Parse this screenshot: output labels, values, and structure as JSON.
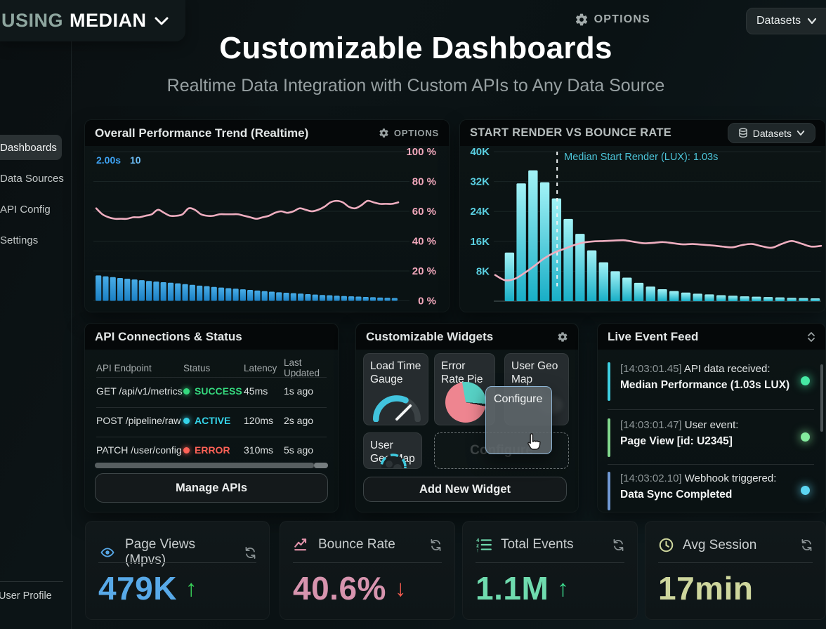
{
  "topbar": {
    "brand_using": "USING",
    "brand_median": "MEDIAN",
    "options_label": "OPTIONS",
    "datasets_label": "Datasets"
  },
  "sidebar": {
    "items": [
      {
        "label": "Dashboards"
      },
      {
        "label": "Data Sources"
      },
      {
        "label": "API Config"
      },
      {
        "label": "Settings"
      }
    ],
    "footer_label": "User Profile"
  },
  "header": {
    "title": "Customizable Dashboards",
    "subtitle": "Realtime Data Integration with Custom APIs to Any Data Source"
  },
  "perf_panel": {
    "title": "Overall Performance Trend (Realtime)",
    "options_label": "OPTIONS"
  },
  "render_panel": {
    "title": "START RENDER VS BOUNCE RATE",
    "datasets_label": "Datasets"
  },
  "api_panel": {
    "title": "API Connections & Status",
    "columns": [
      "API Endpoint",
      "Status",
      "Latency",
      "Last Updated"
    ],
    "rows": [
      {
        "endpoint": "GET /api/v1/metrics",
        "status": "SUCCESS",
        "status_color": "#35d97e",
        "latency": "45ms",
        "updated": "1s ago"
      },
      {
        "endpoint": "POST /pipeline/raw",
        "status": "ACTIVE",
        "status_color": "#35d3e8",
        "latency": "120ms",
        "updated": "2s ago"
      },
      {
        "endpoint": "PATCH /user/config",
        "status": "ERROR",
        "status_color": "#ff6257",
        "latency": "310ms",
        "updated": "5s ago"
      }
    ],
    "button_label": "Manage APIs"
  },
  "widgets_panel": {
    "title": "Customizable Widgets",
    "widget1": "Load Time Gauge",
    "widget2": "Error Rate Pie",
    "widget3": "User Geo Map",
    "widget4": "User Geo Map",
    "drag_label": "Configure",
    "dropzone_label": "Configure",
    "button_label": "Add New Widget"
  },
  "feed_panel": {
    "title": "Live Event Feed",
    "events": [
      {
        "timestamp": "[14:03:01.45]",
        "event": "API data received:",
        "detail": "Median Performance (1.03s LUX)",
        "bar_color": "#3ecfe2",
        "dot_color": "#46e9a4"
      },
      {
        "timestamp": "[14:03:01.47]",
        "event": "User event:",
        "detail": "Page View [id: U2345]",
        "bar_color": "#82d98e",
        "dot_color": "#83ea9d"
      },
      {
        "timestamp": "[14:03:02.10]",
        "event": "Webhook triggered:",
        "detail": "Data Sync Completed",
        "bar_color": "#7099d4",
        "dot_color": "#5cd5f2"
      }
    ]
  },
  "kpis": [
    {
      "icon": "eye-icon",
      "label": "Page Views (Mpvs)",
      "value": "479K",
      "trend": "↑",
      "value_color": "#58a9e8",
      "trend_color": "#38d158"
    },
    {
      "icon": "trend-up-icon",
      "label": "Bounce Rate",
      "value": "40.6%",
      "trend": "↓",
      "value_color": "#d794ae",
      "trend_color": "#ef5a4e"
    },
    {
      "icon": "numbered-list-icon",
      "label": "Total Events",
      "value": "1.1M",
      "trend": "↑",
      "value_color": "#6fdbae",
      "trend_color": "#3cdb8e"
    },
    {
      "icon": "clock-icon",
      "label": "Avg Session",
      "value": "17min",
      "trend": "",
      "value_color": "#ced69d",
      "trend_color": ""
    }
  ],
  "chart_data": [
    {
      "type": "bar+line",
      "title": "Overall Performance Trend (Realtime)",
      "right_ticks": [
        {
          "value": 100,
          "label": "100 %"
        },
        {
          "value": 80,
          "label": "80 %"
        },
        {
          "value": 60,
          "label": "60 %"
        },
        {
          "value": 40,
          "label": "40 %"
        },
        {
          "value": 20,
          "label": "20 %"
        },
        {
          "value": 0,
          "label": "0 %"
        }
      ],
      "left_axis_labels": [
        "2.00s",
        "10"
      ],
      "y_range": [
        0,
        100
      ],
      "grid": true,
      "legend": false,
      "line_series": {
        "name": "performance-percent",
        "color": "#efaec0",
        "values": [
          62,
          58,
          56,
          55,
          55,
          55,
          56,
          56,
          57,
          58,
          61,
          59,
          57,
          57,
          58,
          62,
          61,
          58,
          57,
          57,
          58,
          58,
          58,
          58,
          57,
          56,
          55,
          56,
          57,
          59,
          60,
          59,
          60,
          62,
          61,
          60,
          61,
          63,
          66,
          67,
          66,
          63,
          62,
          64,
          67,
          66,
          65,
          65,
          65,
          66
        ]
      },
      "bar_series": {
        "name": "load-time-distribution",
        "color_top": "#49ade8",
        "color_bottom": "#1b80c4",
        "values": [
          17,
          16.4,
          15.9,
          15.3,
          14.8,
          14.3,
          13.8,
          13.3,
          12.9,
          12.5,
          12.1,
          11.7,
          11.2,
          10.7,
          10.2,
          9.8,
          9.3,
          8.9,
          8.5,
          8.1,
          7.7,
          7.3,
          6.9,
          6.5,
          6.1,
          5.7,
          5.4,
          5.1,
          4.8,
          4.5,
          4.2,
          3.9,
          3.7,
          3.4,
          3.2,
          3.0,
          2.8,
          2.6,
          2.4,
          2.2,
          2.0,
          1.8
        ]
      }
    },
    {
      "type": "bar+line",
      "title": "START RENDER VS BOUNCE RATE",
      "y_ticks": [
        {
          "value": 40000,
          "label": "40K"
        },
        {
          "value": 32000,
          "label": "32K"
        },
        {
          "value": 24000,
          "label": "24K"
        },
        {
          "value": 16000,
          "label": "16K"
        },
        {
          "value": 8000,
          "label": "8K"
        }
      ],
      "y_range": [
        0,
        40000
      ],
      "grid": true,
      "legend": false,
      "annotation": {
        "label": "Median Start Render (LUX): 1.03s",
        "x_index": 4.55
      },
      "bar_series": {
        "name": "start-render-sessions",
        "color_top": "#a2f2f6",
        "color_bottom": "#18aec6",
        "values": [
          13000,
          31500,
          35000,
          31800,
          27500,
          22000,
          18000,
          13600,
          10400,
          8000,
          6300,
          4900,
          3900,
          3200,
          2700,
          2300,
          2000,
          1800,
          1600,
          1450,
          1300,
          1200,
          1100,
          1000,
          900,
          820,
          750
        ]
      },
      "line_series": {
        "name": "bounce-rate",
        "color": "#efaec0",
        "values": [
          7000,
          5600,
          6000,
          7600,
          9500,
          11500,
          13000,
          14000,
          15000,
          15700,
          16000,
          16100,
          16200,
          16300,
          15900,
          15500,
          15600,
          15800,
          15500,
          15200,
          15300,
          15100,
          14900,
          14600,
          14400,
          15000,
          15300,
          14700,
          14300,
          15300,
          16100,
          15400,
          14600,
          14800
        ]
      }
    }
  ]
}
